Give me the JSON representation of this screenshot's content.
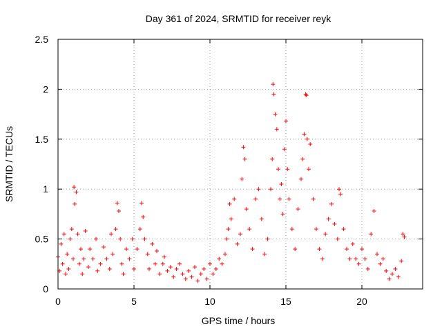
{
  "chart_data": {
    "type": "scatter",
    "title": "Day 361 of 2024, SRMTID for receiver reyk",
    "xlabel": "GPS time / hours",
    "ylabel": "SRMTID / TECUs",
    "xlim": [
      0,
      24
    ],
    "ylim": [
      0,
      2.5
    ],
    "xticks": [
      0,
      5,
      10,
      15,
      20
    ],
    "yticks": [
      0,
      0.5,
      1,
      1.5,
      2,
      2.5
    ],
    "xtick_labels": [
      "0",
      "5",
      "10",
      "15",
      "20"
    ],
    "ytick_labels": [
      "0",
      "0.5",
      "1",
      "1.5",
      "2",
      "2.5"
    ],
    "grid": true,
    "marker": "plus",
    "series": [
      {
        "name": "reyk",
        "color": "#ff0000",
        "points": [
          [
            0.0,
            0.32
          ],
          [
            0.1,
            0.18
          ],
          [
            0.2,
            0.45
          ],
          [
            0.3,
            0.25
          ],
          [
            0.4,
            0.55
          ],
          [
            0.5,
            0.15
          ],
          [
            0.6,
            0.35
          ],
          [
            0.7,
            0.2
          ],
          [
            0.8,
            0.5
          ],
          [
            0.9,
            0.6
          ],
          [
            1.0,
            0.3
          ],
          [
            1.05,
            1.02
          ],
          [
            1.1,
            0.85
          ],
          [
            1.2,
            0.97
          ],
          [
            1.3,
            0.55
          ],
          [
            1.4,
            0.25
          ],
          [
            1.5,
            0.4
          ],
          [
            1.6,
            0.15
          ],
          [
            1.7,
            0.3
          ],
          [
            1.8,
            0.58
          ],
          [
            2.0,
            0.22
          ],
          [
            2.1,
            0.4
          ],
          [
            2.3,
            0.3
          ],
          [
            2.5,
            0.5
          ],
          [
            2.6,
            0.18
          ],
          [
            2.8,
            0.25
          ],
          [
            3.0,
            0.42
          ],
          [
            3.2,
            0.3
          ],
          [
            3.4,
            0.2
          ],
          [
            3.5,
            0.55
          ],
          [
            3.6,
            0.35
          ],
          [
            3.8,
            0.6
          ],
          [
            3.9,
            0.86
          ],
          [
            4.0,
            0.78
          ],
          [
            4.1,
            0.5
          ],
          [
            4.2,
            0.25
          ],
          [
            4.3,
            0.15
          ],
          [
            4.5,
            0.4
          ],
          [
            4.7,
            0.3
          ],
          [
            4.9,
            0.5
          ],
          [
            5.0,
            0.2
          ],
          [
            5.2,
            0.4
          ],
          [
            5.4,
            0.6
          ],
          [
            5.5,
            0.86
          ],
          [
            5.6,
            0.72
          ],
          [
            5.7,
            0.5
          ],
          [
            5.9,
            0.35
          ],
          [
            6.0,
            0.2
          ],
          [
            6.2,
            0.45
          ],
          [
            6.4,
            0.25
          ],
          [
            6.5,
            0.38
          ],
          [
            6.7,
            0.15
          ],
          [
            6.9,
            0.25
          ],
          [
            7.0,
            0.32
          ],
          [
            7.2,
            0.18
          ],
          [
            7.4,
            0.22
          ],
          [
            7.6,
            0.12
          ],
          [
            7.8,
            0.2
          ],
          [
            8.0,
            0.25
          ],
          [
            8.2,
            0.15
          ],
          [
            8.4,
            0.1
          ],
          [
            8.6,
            0.18
          ],
          [
            8.8,
            0.12
          ],
          [
            9.0,
            0.22
          ],
          [
            9.2,
            0.08
          ],
          [
            9.4,
            0.15
          ],
          [
            9.6,
            0.2
          ],
          [
            9.8,
            0.1
          ],
          [
            10.0,
            0.25
          ],
          [
            10.2,
            0.15
          ],
          [
            10.4,
            0.2
          ],
          [
            10.6,
            0.3
          ],
          [
            10.8,
            0.25
          ],
          [
            11.0,
            0.35
          ],
          [
            11.1,
            0.5
          ],
          [
            11.2,
            0.6
          ],
          [
            11.3,
            0.85
          ],
          [
            11.4,
            0.7
          ],
          [
            11.6,
            0.9
          ],
          [
            11.8,
            0.45
          ],
          [
            12.0,
            0.55
          ],
          [
            12.1,
            1.1
          ],
          [
            12.2,
            1.42
          ],
          [
            12.3,
            1.3
          ],
          [
            12.4,
            0.8
          ],
          [
            12.6,
            0.6
          ],
          [
            12.8,
            0.4
          ],
          [
            13.0,
            0.9
          ],
          [
            13.2,
            1.0
          ],
          [
            13.4,
            0.7
          ],
          [
            13.6,
            0.35
          ],
          [
            13.8,
            0.5
          ],
          [
            14.0,
            1.0
          ],
          [
            14.1,
            1.3
          ],
          [
            14.15,
            2.05
          ],
          [
            14.2,
            1.95
          ],
          [
            14.3,
            1.75
          ],
          [
            14.4,
            1.6
          ],
          [
            14.5,
            1.2
          ],
          [
            14.6,
            0.9
          ],
          [
            14.7,
            1.05
          ],
          [
            14.8,
            0.75
          ],
          [
            14.9,
            1.4
          ],
          [
            15.0,
            1.68
          ],
          [
            15.1,
            1.2
          ],
          [
            15.2,
            0.9
          ],
          [
            15.4,
            0.6
          ],
          [
            15.6,
            0.4
          ],
          [
            15.8,
            0.8
          ],
          [
            16.0,
            1.1
          ],
          [
            16.1,
            1.3
          ],
          [
            16.2,
            1.55
          ],
          [
            16.3,
            1.95
          ],
          [
            16.35,
            1.94
          ],
          [
            16.4,
            1.5
          ],
          [
            16.5,
            1.2
          ],
          [
            16.6,
            1.45
          ],
          [
            16.8,
            0.9
          ],
          [
            17.0,
            0.6
          ],
          [
            17.2,
            0.4
          ],
          [
            17.4,
            0.3
          ],
          [
            17.6,
            0.55
          ],
          [
            17.8,
            0.7
          ],
          [
            18.0,
            0.85
          ],
          [
            18.2,
            0.65
          ],
          [
            18.4,
            0.5
          ],
          [
            18.5,
            1.0
          ],
          [
            18.6,
            0.95
          ],
          [
            18.8,
            0.6
          ],
          [
            19.0,
            0.4
          ],
          [
            19.2,
            0.3
          ],
          [
            19.4,
            0.45
          ],
          [
            19.6,
            0.3
          ],
          [
            19.8,
            0.25
          ],
          [
            20.0,
            0.4
          ],
          [
            20.2,
            0.3
          ],
          [
            20.4,
            0.2
          ],
          [
            20.6,
            0.55
          ],
          [
            20.8,
            0.78
          ],
          [
            21.0,
            0.35
          ],
          [
            21.2,
            0.25
          ],
          [
            21.4,
            0.3
          ],
          [
            21.6,
            0.18
          ],
          [
            21.8,
            0.1
          ],
          [
            22.0,
            0.15
          ],
          [
            22.2,
            0.2
          ],
          [
            22.4,
            0.12
          ],
          [
            22.6,
            0.28
          ],
          [
            22.7,
            0.55
          ],
          [
            22.8,
            0.52
          ]
        ]
      }
    ]
  }
}
